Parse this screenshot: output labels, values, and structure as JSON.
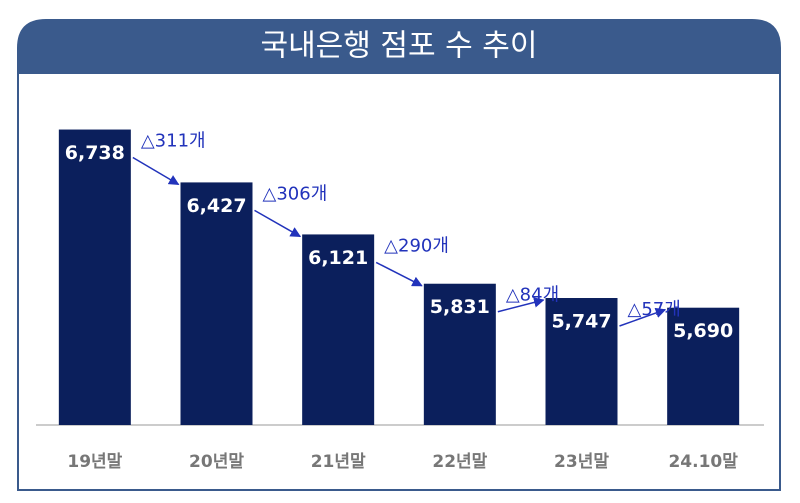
{
  "chart_data": {
    "type": "bar",
    "title": "국내은행 점포 수 추이",
    "categories": [
      "19년말",
      "20년말",
      "21년말",
      "22년말",
      "23년말",
      "24.10말"
    ],
    "values": [
      6738,
      6427,
      6121,
      5831,
      5747,
      5690
    ],
    "value_labels": [
      "6,738",
      "6,427",
      "6,121",
      "5,831",
      "5,747",
      "5,690"
    ],
    "annotations": [
      "△311개",
      "△306개",
      "△290개",
      "△84개",
      "△57개"
    ],
    "color": "#0b1f5c",
    "title_color": "#3a5a8c",
    "annotation_color": "#2233bb",
    "ylim": [
      5000,
      7000
    ]
  }
}
